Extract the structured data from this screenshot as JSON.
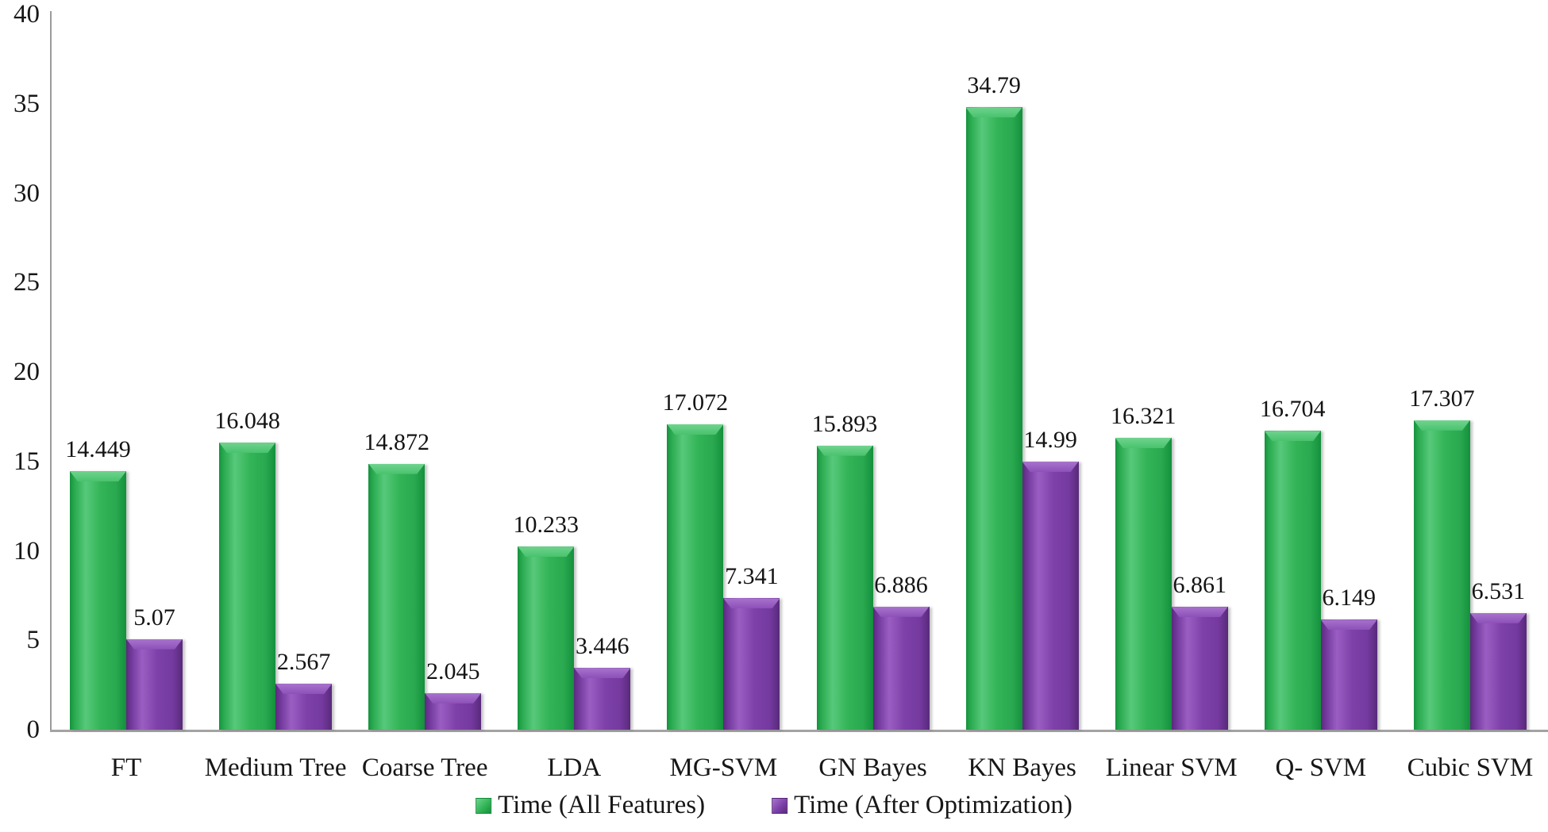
{
  "chart_data": {
    "type": "bar",
    "title": "",
    "xlabel": "",
    "ylabel": "",
    "ylim": [
      0,
      40
    ],
    "yticks": [
      0,
      5,
      10,
      15,
      20,
      25,
      30,
      35,
      40
    ],
    "grid": false,
    "legend_position": "bottom",
    "categories": [
      "FT",
      "Medium Tree",
      "Coarse Tree",
      "LDA",
      "MG-SVM",
      "GN Bayes",
      "KN Bayes",
      "Linear SVM",
      "Q- SVM",
      "Cubic SVM"
    ],
    "series": [
      {
        "name": "Time (All Features)",
        "color": "#33b457",
        "values": [
          14.449,
          16.048,
          14.872,
          10.233,
          17.072,
          15.893,
          34.79,
          16.321,
          16.704,
          17.307
        ],
        "labels": [
          "14.449",
          "16.048",
          "14.872",
          "10.233",
          "17.072",
          "15.893",
          "34.79",
          "16.321",
          "16.704",
          "17.307"
        ]
      },
      {
        "name": "Time (After Optimization)",
        "color": "#7d41a9",
        "values": [
          5.07,
          2.567,
          2.045,
          3.446,
          7.341,
          6.886,
          14.99,
          6.861,
          6.149,
          6.531
        ],
        "labels": [
          "5.07",
          "2.567",
          "2.045",
          "3.446",
          "7.341",
          "6.886",
          "14.99",
          "6.861",
          "6.149",
          "6.531"
        ]
      }
    ]
  },
  "legend": {
    "item_all_features": "Time (All Features)",
    "item_after_optimization": "Time (After Optimization)"
  }
}
